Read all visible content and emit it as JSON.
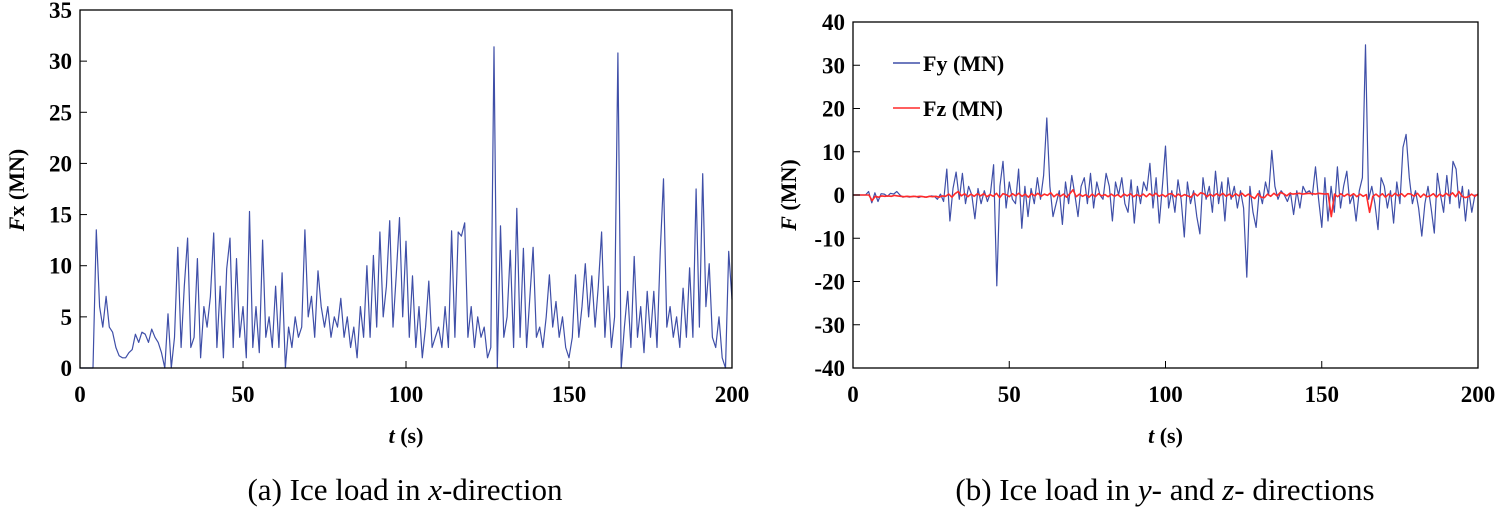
{
  "chart_data": [
    {
      "type": "line",
      "title": "",
      "xlabel": {
        "italic": "t",
        "rest": " (s)"
      },
      "ylabel": {
        "italic": "F",
        "sub": "x",
        "rest": " (MN)"
      },
      "xlim": [
        0,
        200
      ],
      "ylim": [
        0,
        35
      ],
      "xticks": [
        "0",
        "50",
        "100",
        "150",
        "200"
      ],
      "yticks": [
        "0",
        "5",
        "10",
        "15",
        "20",
        "25",
        "30",
        "35"
      ],
      "grid": false,
      "caption": {
        "pre": "(a) Ice load in ",
        "it1": "x",
        "mid": "-direction",
        "it2": "",
        "post": ""
      },
      "series": [
        {
          "name": "Fx (MN)",
          "color": "#3f4fa8",
          "values": [
            0,
            0,
            0,
            0,
            0,
            13.5,
            6,
            4,
            7,
            4,
            3.5,
            2,
            1.2,
            1,
            1,
            1.5,
            1.8,
            3.3,
            2.5,
            3.5,
            3.3,
            2.5,
            3.8,
            3,
            2.5,
            1.5,
            0,
            5.3,
            0,
            3,
            11.8,
            2,
            8,
            12.7,
            2,
            3,
            10.7,
            1,
            6,
            4,
            7,
            13.2,
            2,
            8,
            1,
            9.7,
            12.7,
            2,
            10.7,
            3,
            6,
            1,
            15.3,
            2,
            6,
            1.5,
            12.5,
            3,
            5,
            2,
            8,
            2,
            9.3,
            0,
            4,
            2,
            5,
            3,
            4,
            13.5,
            5,
            7,
            3,
            9.5,
            6,
            4,
            6,
            3,
            5,
            4,
            6.8,
            3,
            5,
            2,
            4,
            1,
            6,
            3,
            10,
            3,
            11,
            4,
            13.3,
            5,
            8,
            14.4,
            4,
            9,
            14.7,
            5,
            12.4,
            3,
            9,
            2,
            6,
            1,
            4,
            8.5,
            2,
            3,
            4,
            2,
            6,
            2,
            13.4,
            3,
            13.3,
            12.9,
            14.2,
            3,
            6,
            2,
            5,
            3,
            4,
            1,
            2,
            31.4,
            0,
            13.9,
            3,
            5,
            11.5,
            2,
            15.6,
            3,
            11.7,
            2,
            7,
            11.8,
            3,
            4,
            2,
            5,
            9.1,
            4,
            6.5,
            3,
            5,
            2,
            1,
            3,
            9.1,
            3,
            6,
            10.2,
            5,
            9,
            4,
            8,
            13.3,
            3,
            8,
            2,
            5,
            30.8,
            0,
            4,
            7.5,
            2,
            10.9,
            3,
            6,
            1.5,
            7.5,
            3,
            7.5,
            2,
            11.5,
            18.5,
            4,
            6,
            3,
            5,
            2,
            7.8,
            3,
            9.8,
            3,
            17.5,
            4,
            19,
            6,
            10.2,
            3,
            2,
            5,
            1,
            0,
            11.4,
            6.7
          ]
        }
      ]
    },
    {
      "type": "line",
      "title": "",
      "xlabel": {
        "italic": "t",
        "rest": " (s)"
      },
      "ylabel": {
        "italic": "F",
        "sub": "",
        "rest": " (MN)"
      },
      "xlim": [
        0,
        200
      ],
      "ylim": [
        -40,
        40
      ],
      "xticks": [
        "0",
        "50",
        "100",
        "150",
        "200"
      ],
      "yticks": [
        "-40",
        "-30",
        "-20",
        "-10",
        "0",
        "10",
        "20",
        "30",
        "40"
      ],
      "grid": false,
      "legend_position": "top-left",
      "caption": {
        "pre": "(b) Ice load in ",
        "it1": "y",
        "mid": "- and ",
        "it2": "z",
        "post": "- directions"
      },
      "series": [
        {
          "name": "Fy (MN)",
          "color": "#3f4fa8",
          "values": [
            0,
            0,
            0,
            0,
            0,
            0.8,
            -1.8,
            0.5,
            -1.5,
            0.3,
            0.2,
            -0.3,
            0.4,
            0.2,
            0.8,
            0,
            -0.5,
            -0.3,
            -0.5,
            -0.4,
            -0.3,
            -0.6,
            -0.3,
            -0.5,
            -0.4,
            -0.2,
            -0.3,
            -1,
            0.2,
            -1.5,
            6,
            -6,
            1.5,
            5.3,
            -1,
            5,
            -2,
            2,
            0,
            -5.5,
            1.5,
            -2,
            1,
            -1.5,
            0.5,
            7,
            -21,
            2,
            7.8,
            -3,
            3,
            -1,
            -2,
            6,
            -7.7,
            2,
            -5,
            1.5,
            -2,
            4,
            -1,
            4.5,
            17.8,
            2,
            -5,
            -2,
            1,
            -6.8,
            3,
            -2,
            4.5,
            0,
            -5,
            2,
            4,
            -2,
            5,
            -3,
            3,
            0,
            -1,
            5,
            2,
            -6,
            3,
            0,
            4,
            -2,
            -4,
            3.5,
            -6.5,
            2,
            -2,
            3,
            1,
            7.3,
            -3,
            4,
            -6.5,
            2,
            11.3,
            -3,
            1,
            -4,
            3.5,
            -1,
            -9.7,
            3,
            -2,
            1,
            -5,
            -9,
            4,
            -1,
            2,
            -4,
            5.5,
            -2,
            3,
            -6,
            4,
            -1,
            2,
            -3,
            1,
            -3,
            -19,
            2,
            -4,
            -7.5,
            1,
            -2,
            3,
            0,
            10.3,
            2,
            -1,
            1,
            0,
            -1.5,
            0.5,
            -4.5,
            1,
            -3,
            2,
            0.5,
            1,
            0,
            6.5,
            -1,
            -7.5,
            4,
            -6,
            2,
            -4,
            6.5,
            -3,
            2,
            5.5,
            -2,
            0,
            -6,
            1,
            4,
            34.7,
            -1,
            2,
            -2,
            -8,
            4,
            2,
            -3,
            1,
            -6.5,
            3,
            -2,
            11,
            14,
            4,
            -2,
            1,
            -3,
            -9.5,
            -2,
            2,
            -3,
            -8.8,
            5,
            0,
            -4,
            4.5,
            -2,
            7.8,
            6,
            -3,
            2,
            -6,
            1.2,
            -4,
            0,
            0
          ]
        },
        {
          "name": "Fz (MN)",
          "color": "#ff2a2a",
          "values": [
            0,
            0,
            0,
            0,
            0,
            0,
            -1.3,
            -0.3,
            -0.5,
            -0.2,
            -0.3,
            -0.2,
            -0.3,
            -0.1,
            -0.2,
            -0.3,
            -0.4,
            -0.3,
            -0.4,
            -0.3,
            -0.4,
            -0.3,
            -0.4,
            -0.5,
            -0.3,
            -0.4,
            -0.3,
            -0.5,
            -0.2,
            -0.3,
            0.2,
            -0.5,
            0.3,
            0.8,
            -0.2,
            0.3,
            -0.4,
            0.2,
            -0.3,
            0.3,
            -0.2,
            0.3,
            -0.4,
            0.1,
            -0.3,
            0.4,
            -0.6,
            0.3,
            0.1,
            -0.4,
            0.3,
            -0.2,
            0.4,
            -0.3,
            0.2,
            -0.5,
            0.3,
            -0.2,
            0.4,
            -0.3,
            0.2,
            -0.1,
            0.5,
            -0.4,
            0.2,
            -0.3,
            0.2,
            -0.5,
            0.3,
            1.2,
            -0.4,
            0.2,
            -0.3,
            0.1,
            -0.5,
            0.2,
            -0.4,
            0.3,
            -0.2,
            0.1,
            -0.4,
            0.2,
            -0.3,
            0.1,
            -0.5,
            0.2,
            -0.2,
            0.3,
            -0.4,
            0.1,
            -0.3,
            0.2,
            -0.4,
            0.3,
            -0.2,
            0.4,
            -0.3,
            0.1,
            -0.4,
            0.2,
            0.3,
            -0.4,
            0.2,
            -0.3,
            0.1,
            -0.2,
            -0.5,
            0.4,
            -0.2,
            0.5,
            0.3,
            -0.4,
            0.2,
            -0.3,
            0.3,
            -0.2,
            0.4,
            -0.3,
            0.2,
            -0.4,
            0.3,
            -0.2,
            0.4,
            -0.3,
            0.2,
            -0.4,
            -0.8,
            0.3,
            -0.5,
            -0.6,
            0.2,
            -0.3,
            0.4,
            -0.2,
            0.6,
            0.3,
            -0.2,
            0.4,
            0.2,
            0.3,
            0.4,
            0.2,
            0.3,
            0.4,
            0.3,
            0.2,
            0.4,
            0.3,
            0.2,
            0.3,
            -5,
            0.2,
            -0.4,
            0.3,
            -0.3,
            0.2,
            -0.2,
            0.3,
            -0.4,
            0.2,
            -0.3,
            0.1,
            -4,
            -0.3,
            0.2,
            -0.4,
            0.3,
            -0.5,
            0.2,
            -0.3,
            0.4,
            -0.2,
            0.3,
            -0.4,
            0.3,
            0.2,
            -0.3,
            0.4,
            -0.5,
            0.2,
            -0.4,
            -0.2,
            0.3,
            -0.5,
            0.2,
            -0.3,
            0.4,
            -0.2,
            0.5,
            -0.4,
            0.8,
            -0.3,
            -0.6,
            -0.4,
            0.2,
            -0.3,
            0.2
          ]
        }
      ]
    }
  ]
}
